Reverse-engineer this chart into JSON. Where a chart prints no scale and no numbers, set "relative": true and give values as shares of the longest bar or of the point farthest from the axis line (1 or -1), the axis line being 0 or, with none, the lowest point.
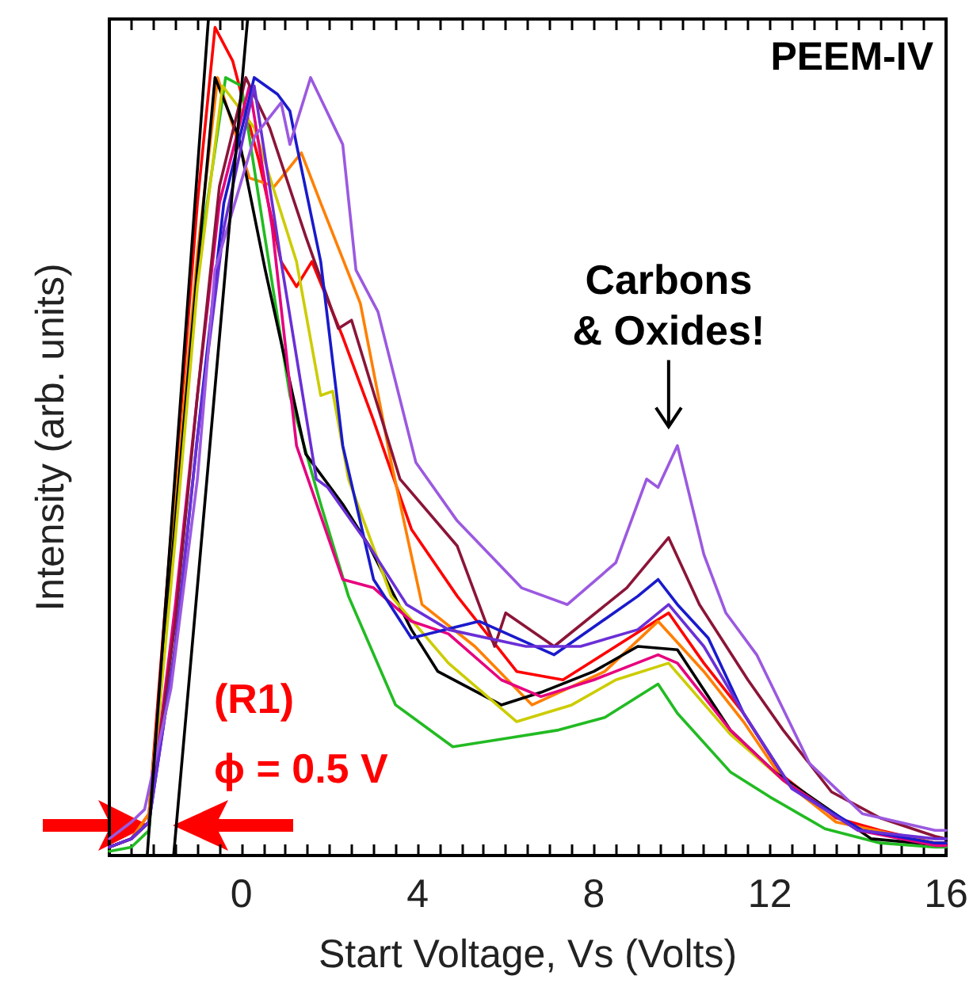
{
  "chart_data": {
    "type": "line",
    "xlabel": "Start Voltage, Vs (Volts)",
    "ylabel": "Intensity (arb. units)",
    "relative": true,
    "xlim": [
      -3,
      16
    ],
    "xticks": [
      0,
      4,
      8,
      12,
      16
    ],
    "tick_labels": "x",
    "grid": false,
    "annotations": [
      "PEEM-IV",
      {
        "text": "Carbons\n& Oxides!",
        "x": 9.7,
        "y": 0.49
      },
      "(R1)",
      "ϕ = 0.5 V"
    ],
    "series": [
      {
        "color": "#ff0000",
        "x": [
          -3,
          -2.5,
          -2.1,
          -1.5,
          -1.0,
          -0.6,
          -0.2,
          0.4,
          0.9,
          1.25,
          1.6,
          2.3,
          3.0,
          3.86,
          4.9,
          6.25,
          7.3,
          8.5,
          9.7,
          10.5,
          11.4,
          12.3,
          13.5,
          14.5,
          15.75,
          16
        ],
        "values": [
          0.01,
          0.02,
          0.05,
          0.45,
          0.78,
          0.99,
          0.95,
          0.83,
          0.71,
          0.68,
          0.71,
          0.62,
          0.52,
          0.39,
          0.31,
          0.22,
          0.21,
          0.25,
          0.29,
          0.23,
          0.17,
          0.095,
          0.045,
          0.03,
          0.015,
          0.015
        ]
      },
      {
        "color": "#ff7f00",
        "x": [
          -3,
          -2.5,
          -2.1,
          -1.5,
          -1.0,
          -0.54,
          0.18,
          0.75,
          1.36,
          1.8,
          2.7,
          3.4,
          4.1,
          5.3,
          6.6,
          8.25,
          9.46,
          10.5,
          11.4,
          12.3,
          13.5,
          15.75,
          16
        ],
        "values": [
          0.01,
          0.02,
          0.05,
          0.42,
          0.72,
          0.93,
          0.81,
          0.8,
          0.84,
          0.78,
          0.66,
          0.47,
          0.3,
          0.25,
          0.18,
          0.22,
          0.28,
          0.22,
          0.16,
          0.09,
          0.04,
          0.015,
          0.015
        ]
      },
      {
        "color": "#22bb22",
        "x": [
          -3,
          -2.5,
          -2.1,
          -1.5,
          -1.0,
          -0.36,
          0,
          0.5,
          1.1,
          1.8,
          2.43,
          3.5,
          4.8,
          6.0,
          7.2,
          8.25,
          9.46,
          9.9,
          11.1,
          12,
          13.25,
          14.5,
          15.75,
          16
        ],
        "values": [
          0.005,
          0.01,
          0.03,
          0.4,
          0.7,
          0.93,
          0.92,
          0.75,
          0.55,
          0.42,
          0.31,
          0.18,
          0.13,
          0.14,
          0.15,
          0.165,
          0.205,
          0.17,
          0.1,
          0.07,
          0.032,
          0.015,
          0.01,
          0.01
        ]
      },
      {
        "color": "#000000",
        "x": [
          -3,
          -2.5,
          -2.1,
          -1.5,
          -1.0,
          -0.6,
          -0.07,
          0.54,
          1.46,
          2.3,
          2.9,
          3.86,
          4.46,
          5.9,
          6.8,
          8.0,
          9.0,
          9.9,
          11.1,
          12.1,
          14.3,
          15.75,
          16
        ],
        "values": [
          0.01,
          0.02,
          0.04,
          0.4,
          0.7,
          0.93,
          0.86,
          0.7,
          0.48,
          0.42,
          0.37,
          0.27,
          0.22,
          0.18,
          0.195,
          0.22,
          0.25,
          0.246,
          0.15,
          0.1,
          0.02,
          0.013,
          0.013
        ]
      },
      {
        "color": "#cccc00",
        "x": [
          -3,
          -2.5,
          -2.1,
          -1.5,
          -1.0,
          -0.43,
          0.29,
          1.25,
          1.8,
          2.07,
          2.43,
          3.4,
          4.7,
          6.25,
          7.5,
          8.5,
          9.7,
          11.1,
          12.3,
          14
        ],
        "values": [
          0.01,
          0.02,
          0.04,
          0.38,
          0.68,
          0.92,
          0.87,
          0.71,
          0.55,
          0.555,
          0.45,
          0.31,
          0.23,
          0.16,
          0.18,
          0.21,
          0.23,
          0.145,
          0.09,
          0.03
        ]
      },
      {
        "color": "#e6007e",
        "x": [
          -3,
          -2.5,
          -2.1,
          -1.5,
          -1.0,
          -0.5,
          0.18,
          0.7,
          1.25,
          2.3,
          3.0,
          3.86,
          4.7,
          5.9,
          6.8,
          8.0,
          9.46,
          9.9,
          11.1,
          12.3,
          14,
          15.75,
          16
        ],
        "values": [
          0.01,
          0.02,
          0.04,
          0.3,
          0.55,
          0.78,
          0.92,
          0.75,
          0.49,
          0.33,
          0.32,
          0.28,
          0.265,
          0.21,
          0.19,
          0.21,
          0.24,
          0.23,
          0.15,
          0.09,
          0.03,
          0.012,
          0.012
        ]
      },
      {
        "color": "#8b1538",
        "x": [
          -3,
          -2.5,
          -2.1,
          -1.5,
          -1.0,
          -0.5,
          0.1,
          0.64,
          1.46,
          2.2,
          2.5,
          3.6,
          4.9,
          5.75,
          6.0,
          7.1,
          8.75,
          9.7,
          10.4,
          11.5,
          12.3,
          13.4,
          14.5,
          15.75,
          16
        ],
        "values": [
          0.01,
          0.02,
          0.04,
          0.28,
          0.55,
          0.8,
          0.93,
          0.87,
          0.74,
          0.63,
          0.64,
          0.45,
          0.37,
          0.25,
          0.29,
          0.25,
          0.32,
          0.38,
          0.3,
          0.21,
          0.15,
          0.076,
          0.045,
          0.023,
          0.02
        ]
      },
      {
        "color": "#1a1acc",
        "x": [
          -3,
          -2.5,
          -2.1,
          -1.5,
          -1.0,
          -0.4,
          0.29,
          0.82,
          1.1,
          1.25,
          1.8,
          2.3,
          3.0,
          3.86,
          5.4,
          7.1,
          9.0,
          9.46,
          9.9,
          10.6,
          11.4,
          12.5,
          14.1,
          15.75,
          16
        ],
        "values": [
          0.01,
          0.02,
          0.04,
          0.25,
          0.5,
          0.78,
          0.93,
          0.91,
          0.89,
          0.85,
          0.71,
          0.49,
          0.33,
          0.26,
          0.28,
          0.24,
          0.31,
          0.33,
          0.3,
          0.26,
          0.17,
          0.08,
          0.03,
          0.015,
          0.015
        ]
      },
      {
        "color": "#6a2fd6",
        "x": [
          -3,
          -2.5,
          -2.1,
          -1.5,
          -1.0,
          -0.4,
          0.29,
          0.9,
          1.7,
          1.96,
          2.9,
          3.75,
          4.7,
          6.46,
          7.7,
          9.0,
          9.7,
          10.5,
          11.4,
          12.5,
          14,
          15.75,
          16
        ],
        "values": [
          0.01,
          0.02,
          0.04,
          0.25,
          0.5,
          0.75,
          0.92,
          0.71,
          0.45,
          0.44,
          0.37,
          0.3,
          0.27,
          0.25,
          0.25,
          0.27,
          0.3,
          0.25,
          0.17,
          0.08,
          0.03,
          0.02,
          0.02
        ]
      },
      {
        "color": "#9b59e0",
        "x": [
          -3,
          -2.5,
          -2.2,
          -1.6,
          -1.0,
          -0.6,
          0.3,
          0.9,
          1.1,
          1.57,
          2.3,
          2.6,
          3.1,
          3.96,
          4.9,
          6.36,
          7.4,
          8.5,
          9.2,
          9.46,
          9.9,
          10.5,
          11,
          11.7,
          12.9,
          14.1,
          15.75,
          16
        ],
        "values": [
          0.02,
          0.04,
          0.055,
          0.2,
          0.45,
          0.7,
          0.86,
          0.9,
          0.85,
          0.93,
          0.85,
          0.7,
          0.65,
          0.47,
          0.4,
          0.32,
          0.3,
          0.35,
          0.45,
          0.44,
          0.49,
          0.36,
          0.29,
          0.24,
          0.11,
          0.05,
          0.03,
          0.03
        ]
      },
      {
        "color": "#000000",
        "x": [
          -2.14,
          -0.75
        ],
        "values": [
          0,
          1
        ]
      },
      {
        "color": "#000000",
        "x": [
          -1.54,
          0.14
        ],
        "values": [
          0,
          1
        ]
      }
    ]
  }
}
